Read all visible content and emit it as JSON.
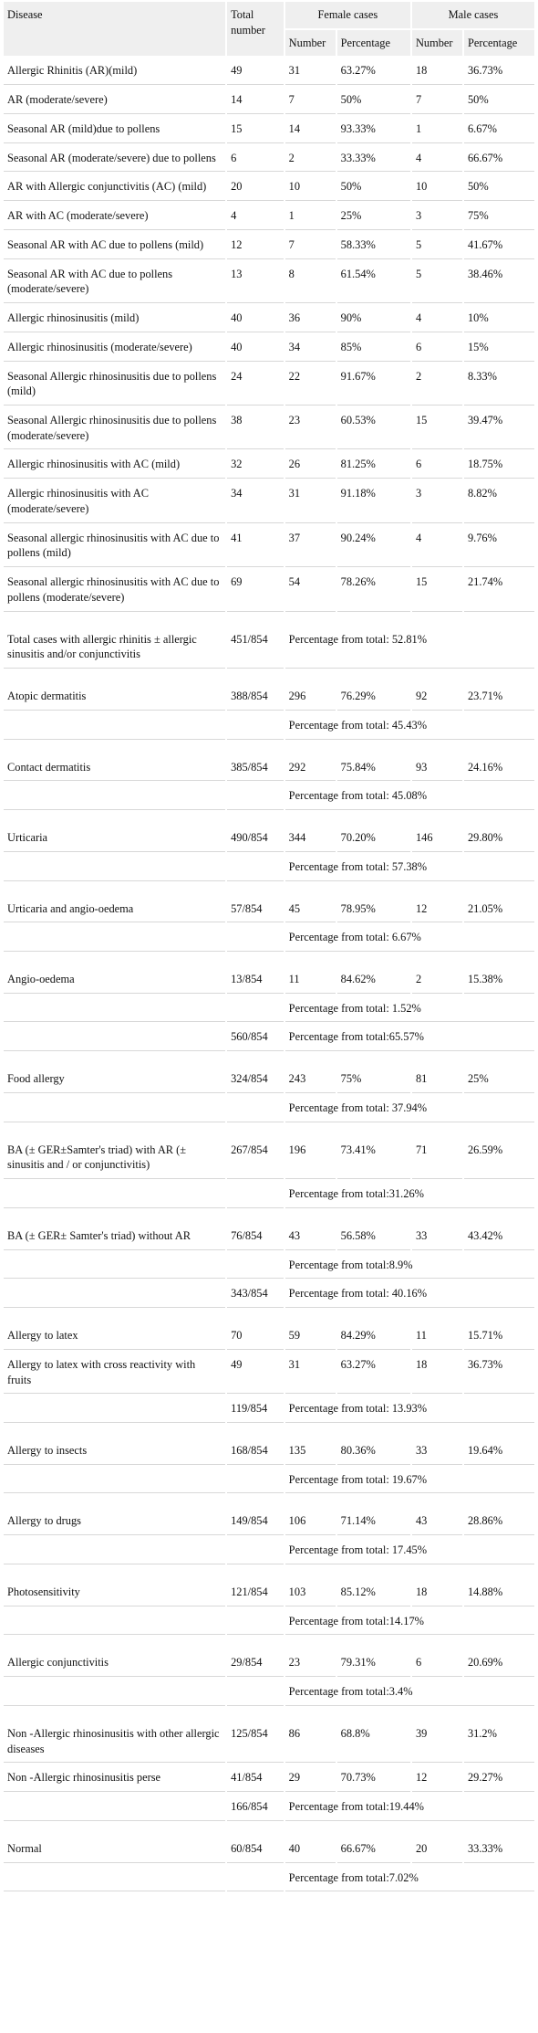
{
  "header": {
    "disease": "Disease",
    "total": "Total number",
    "female": "Female cases",
    "male": "Male cases",
    "number": "Number",
    "percentage": "Percentage"
  },
  "rows": [
    {
      "d": "Allergic Rhinitis (AR)(mild)",
      "t": "49",
      "fn": "31",
      "fp": "63.27%",
      "mn": "18",
      "mp": "36.73%"
    },
    {
      "d": "AR (moderate/severe)",
      "t": "14",
      "fn": "7",
      "fp": "50%",
      "mn": "7",
      "mp": "50%"
    },
    {
      "d": "Seasonal AR (mild)due to pollens",
      "t": "15",
      "fn": "14",
      "fp": "93.33%",
      "mn": "1",
      "mp": "6.67%"
    },
    {
      "d": "Seasonal AR (moderate/severe) due to pollens",
      "t": "6",
      "fn": "2",
      "fp": "33.33%",
      "mn": "4",
      "mp": "66.67%"
    },
    {
      "d": "AR with Allergic conjunctivitis (AC) (mild)",
      "t": "20",
      "fn": "10",
      "fp": "50%",
      "mn": "10",
      "mp": "50%"
    },
    {
      "d": "AR with AC (moderate/severe)",
      "t": "4",
      "fn": "1",
      "fp": "25%",
      "mn": "3",
      "mp": "75%"
    },
    {
      "d": "Seasonal AR with AC due to pollens (mild)",
      "t": "12",
      "fn": "7",
      "fp": "58.33%",
      "mn": "5",
      "mp": "41.67%"
    },
    {
      "d": "Seasonal AR with AC due to pollens (moderate/severe)",
      "t": "13",
      "fn": "8",
      "fp": "61.54%",
      "mn": "5",
      "mp": "38.46%"
    },
    {
      "d": "Allergic rhinosinusitis (mild)",
      "t": "40",
      "fn": "36",
      "fp": "90%",
      "mn": "4",
      "mp": "10%"
    },
    {
      "d": "Allergic rhinosinusitis (moderate/severe)",
      "t": "40",
      "fn": "34",
      "fp": "85%",
      "mn": "6",
      "mp": "15%"
    },
    {
      "d": "Seasonal Allergic rhinosinusitis due to pollens (mild)",
      "t": "24",
      "fn": "22",
      "fp": "91.67%",
      "mn": "2",
      "mp": "8.33%"
    },
    {
      "d": "Seasonal Allergic rhinosinusitis due to pollens (moderate/severe)",
      "t": "38",
      "fn": "23",
      "fp": "60.53%",
      "mn": "15",
      "mp": "39.47%"
    },
    {
      "d": "Allergic rhinosinusitis with AC (mild)",
      "t": "32",
      "fn": "26",
      "fp": "81.25%",
      "mn": "6",
      "mp": "18.75%"
    },
    {
      "d": "Allergic rhinosinusitis with AC (moderate/severe)",
      "t": "34",
      "fn": "31",
      "fp": "91.18%",
      "mn": "3",
      "mp": "8.82%"
    },
    {
      "d": "Seasonal allergic rhinosinusitis with AC due to pollens (mild)",
      "t": "41",
      "fn": "37",
      "fp": "90.24%",
      "mn": "4",
      "mp": "9.76%"
    },
    {
      "d": "Seasonal allergic rhinosinusitis with AC due to pollens (moderate/severe)",
      "t": "69",
      "fn": "54",
      "fp": "78.26%",
      "mn": "15",
      "mp": "21.74%"
    },
    {
      "sep": true
    },
    {
      "d": "Total cases with allergic rhinitis ± allergic sinusitis and/or conjunctivitis",
      "t": "451/854",
      "pt": "Percentage from total: 52.81%"
    },
    {
      "sep": true
    },
    {
      "d": "Atopic dermatitis",
      "t": "388/854",
      "fn": "296",
      "fp": "76.29%",
      "mn": "92",
      "mp": "23.71%"
    },
    {
      "d": "",
      "t": "",
      "pt": "Percentage from total: 45.43%"
    },
    {
      "sep": true
    },
    {
      "d": "Contact dermatitis",
      "t": "385/854",
      "fn": "292",
      "fp": "75.84%",
      "mn": "93",
      "mp": "24.16%"
    },
    {
      "d": "",
      "t": "",
      "pt": "Percentage from total: 45.08%"
    },
    {
      "sep": true
    },
    {
      "d": "Urticaria",
      "t": "490/854",
      "fn": "344",
      "fp": "70.20%",
      "mn": "146",
      "mp": "29.80%"
    },
    {
      "d": "",
      "t": "",
      "pt": "Percentage from total: 57.38%"
    },
    {
      "sep": true
    },
    {
      "d": "Urticaria and angio-oedema",
      "t": "57/854",
      "fn": "45",
      "fp": "78.95%",
      "mn": "12",
      "mp": "21.05%"
    },
    {
      "d": "",
      "t": "",
      "pt": "Percentage from total: 6.67%"
    },
    {
      "sep": true
    },
    {
      "d": "Angio-oedema",
      "t": "13/854",
      "fn": "11",
      "fp": "84.62%",
      "mn": "2",
      "mp": "15.38%"
    },
    {
      "d": "",
      "t": "",
      "pt": "Percentage from total: 1.52%"
    },
    {
      "d": "",
      "t": "560/854",
      "pt": "Percentage from total:65.57%"
    },
    {
      "sep": true
    },
    {
      "d": "Food allergy",
      "t": "324/854",
      "fn": "243",
      "fp": "75%",
      "mn": "81",
      "mp": "25%"
    },
    {
      "d": "",
      "t": "",
      "pt": "Percentage from total: 37.94%"
    },
    {
      "sep": true
    },
    {
      "d": "BA (± GER±Samter's triad) with AR (± sinusitis and / or conjunctivitis)",
      "t": "267/854",
      "fn": "196",
      "fp": "73.41%",
      "mn": "71",
      "mp": "26.59%"
    },
    {
      "d": "",
      "t": "",
      "pt": "Percentage from total:31.26%"
    },
    {
      "sep": true
    },
    {
      "d": "BA (± GER± Samter's triad) without AR",
      "t": "76/854",
      "fn": "43",
      "fp": "56.58%",
      "mn": "33",
      "mp": "43.42%"
    },
    {
      "d": "",
      "t": "",
      "pt": "Percentage from total:8.9%"
    },
    {
      "d": "",
      "t": "343/854",
      "pt": "Percentage from total: 40.16%"
    },
    {
      "sep": true
    },
    {
      "d": "Allergy to latex",
      "t": "70",
      "fn": "59",
      "fp": "84.29%",
      "mn": "11",
      "mp": "15.71%"
    },
    {
      "d": "Allergy to latex with cross reactivity with fruits",
      "t": "49",
      "fn": "31",
      "fp": "63.27%",
      "mn": "18",
      "mp": "36.73%"
    },
    {
      "d": "",
      "t": "119/854",
      "pt": "Percentage from total: 13.93%"
    },
    {
      "sep": true
    },
    {
      "d": "Allergy to insects",
      "t": "168/854",
      "fn": "135",
      "fp": "80.36%",
      "mn": "33",
      "mp": "19.64%"
    },
    {
      "d": "",
      "t": "",
      "pt": "Percentage from total: 19.67%"
    },
    {
      "sep": true
    },
    {
      "d": "Allergy to drugs",
      "t": "149/854",
      "fn": "106",
      "fp": "71.14%",
      "mn": "43",
      "mp": "28.86%"
    },
    {
      "d": "",
      "t": "",
      "pt": "Percentage from total: 17.45%"
    },
    {
      "sep": true
    },
    {
      "d": "Photosensitivity",
      "t": "121/854",
      "fn": "103",
      "fp": "85.12%",
      "mn": "18",
      "mp": "14.88%"
    },
    {
      "d": "",
      "t": "",
      "pt": "Percentage from total:14.17%"
    },
    {
      "sep": true
    },
    {
      "d": "Allergic conjunctivitis",
      "t": "29/854",
      "fn": "23",
      "fp": "79.31%",
      "mn": "6",
      "mp": "20.69%"
    },
    {
      "d": "",
      "t": "",
      "pt": "Percentage from total:3.4%"
    },
    {
      "sep": true
    },
    {
      "d": "Non -Allergic rhinosinusitis with other allergic diseases",
      "t": "125/854",
      "fn": "86",
      "fp": "68.8%",
      "mn": "39",
      "mp": "31.2%"
    },
    {
      "d": "Non -Allergic rhinosinusitis perse",
      "t": "41/854",
      "fn": "29",
      "fp": "70.73%",
      "mn": "12",
      "mp": "29.27%"
    },
    {
      "d": "",
      "t": "166/854",
      "pt": "Percentage from total:19.44%"
    },
    {
      "sep": true
    },
    {
      "d": "Normal",
      "t": "60/854",
      "fn": "40",
      "fp": "66.67%",
      "mn": "20",
      "mp": "33.33%"
    },
    {
      "d": "",
      "t": "",
      "pt": "Percentage from total:7.02%"
    }
  ]
}
